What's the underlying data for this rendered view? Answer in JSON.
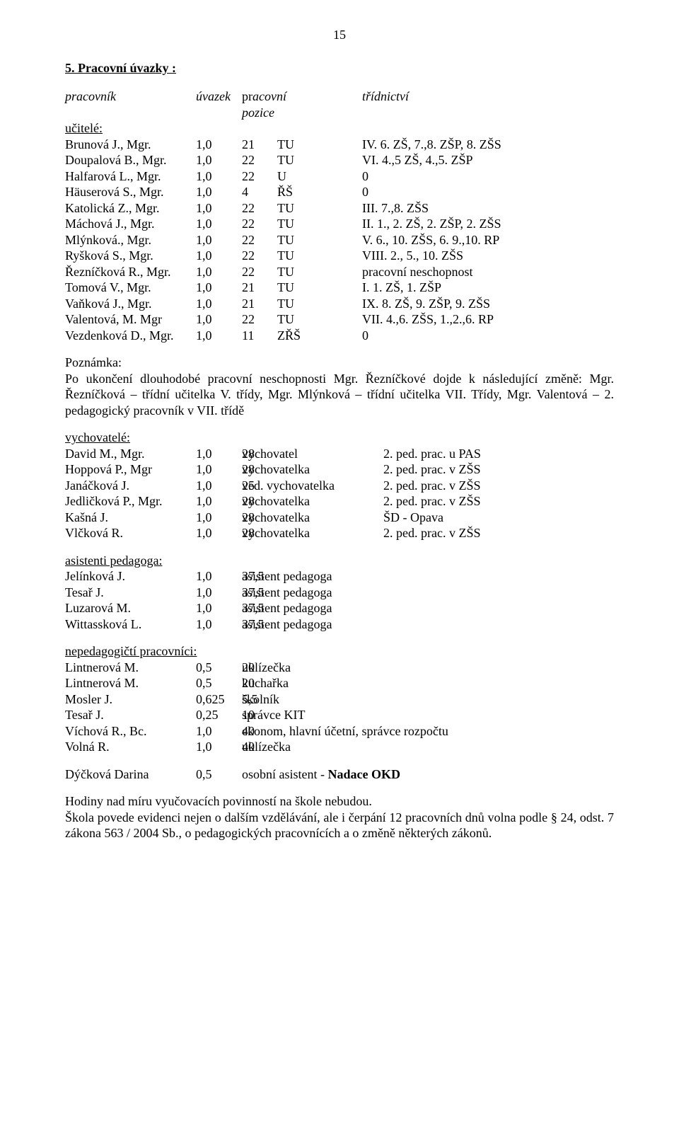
{
  "page_number": "15",
  "section_heading": "5.  Pracovní úvazky :",
  "header": {
    "c1": "pracovník",
    "c2": "úvazek",
    "c3": "pr",
    "c3b": "acovní",
    "c4": "pozice",
    "c5": "třídnictví"
  },
  "teachers": {
    "label": "učitelé:",
    "rows": [
      {
        "n": "Brunová J., Mgr.",
        "u": "1,0",
        "p": "21",
        "pz": "TU",
        "t": "IV. 6. ZŠ, 7.,8. ZŠP, 8. ZŠS"
      },
      {
        "n": "Doupalová B., Mgr.",
        "u": "1,0",
        "p": "22",
        "pz": "TU",
        "t": "VI. 4.,5 ZŠ, 4.,5. ZŠP"
      },
      {
        "n": "Halfarová L., Mgr.",
        "u": "1,0",
        "p": "22",
        "pz": "U",
        "t": "0"
      },
      {
        "n": "Häuserová S., Mgr.",
        "u": "1,0",
        "p": "  4",
        "pz": "ŘŠ",
        "t": "0"
      },
      {
        "n": "Katolická Z., Mgr.",
        "u": "1,0",
        "p": "22",
        "pz": "TU",
        "t": "III. 7.,8. ZŠS"
      },
      {
        "n": "Máchová J., Mgr.",
        "u": "1,0",
        "p": "22",
        "pz": "TU",
        "t": "II. 1., 2. ZŠ, 2. ZŠP, 2. ZŠS"
      },
      {
        "n": "Mlýnková., Mgr.",
        "u": "1,0",
        "p": "22",
        "pz": "TU",
        "t": "V. 6., 10. ZŠS, 6. 9.,10. RP"
      },
      {
        "n": "Ryšková S., Mgr.",
        "u": "1,0",
        "p": "22",
        "pz": "TU",
        "t": "VIII. 2., 5., 10. ZŠS"
      },
      {
        "n": "Řezníčková R., Mgr.",
        "u": "1,0",
        "p": "22",
        "pz": "TU",
        "t": "pracovní neschopnost"
      },
      {
        "n": "Tomová V., Mgr.",
        "u": "1,0",
        "p": "21",
        "pz": "TU",
        "t": "I. 1. ZŠ, 1. ZŠP"
      },
      {
        "n": "Vaňková J., Mgr.",
        "u": "1,0",
        "p": "21",
        "pz": "TU",
        "t": "IX. 8. ZŠ, 9. ZŠP, 9. ZŠS"
      },
      {
        "n": "Valentová, M. Mgr",
        "u": "1,0",
        "p": "22",
        "pz": "TU",
        "t": "VII. 4.,6. ZŠS, 1.,2.,6. RP"
      },
      {
        "n": "Vezdenková D., Mgr.",
        "u": "1,0",
        "p": "11",
        "pz": "ZŘŠ",
        "t": "0"
      }
    ]
  },
  "note_label": "Poznámka:",
  "note_text": "Po ukončení dlouhodobé pracovní neschopnosti Mgr. Řezníčkové dojde k následující změně: Mgr. Řezníčková – třídní učitelka V. třídy, Mgr. Mlýnková – třídní učitelka VII. Třídy, Mgr. Valentová – 2. pedagogický pracovník v VII. třídě",
  "vych": {
    "label": "vychovatelé:",
    "rows": [
      {
        "n": "David M., Mgr.",
        "u": "1,0",
        "p": "28",
        "pz": "vychovatel",
        "t": "2. ped. prac. u PAS"
      },
      {
        "n": "Hoppová P., Mgr",
        "u": "1,0",
        "p": "28",
        "pz": "vychovatelka",
        "t": "2. ped. prac. v ZŠS"
      },
      {
        "n": "Janáčková J.",
        "u": "1,0",
        "p": "25",
        "pz": "ved. vychovatelka",
        "t": "2. ped. prac. v ZŠS"
      },
      {
        "n": "Jedličková P., Mgr.",
        "u": "1,0",
        "p": "28",
        "pz": "vychovatelka",
        "t": "2. ped. prac. v ZŠS"
      },
      {
        "n": "Kašná J.",
        "u": "1,0",
        "p": "28",
        "pz": "vychovatelka",
        "t": "ŠD - Opava"
      },
      {
        "n": "Vlčková R.",
        "u": "1,0",
        "p": "28",
        "pz": "vychovatelka",
        "t": "2. ped. prac. v ZŠS"
      }
    ]
  },
  "ap": {
    "label": "asistenti pedagoga:",
    "rows": [
      {
        "n": "Jelínková J.",
        "u": "1,0",
        "p": "37,5",
        "pz": "asistent pedagoga"
      },
      {
        "n": "Tesař J.",
        "u": "1,0",
        "p": "37,5",
        "pz": "asistent pedagoga"
      },
      {
        "n": "Luzarová M.",
        "u": "1,0",
        "p": "37,5",
        "pz": "asistent pedagoga"
      },
      {
        "n": "Wittassková L.",
        "u": "1,0",
        "p": "37,5",
        "pz": "asistent pedagoga"
      }
    ]
  },
  "np": {
    "label": "nepedagogičtí pracovníci:",
    "rows": [
      {
        "n": "Lintnerová M.",
        "u": "0,5",
        "p": "20",
        "pz": "uklízečka"
      },
      {
        "n": "Lintnerová M.",
        "u": "0,5",
        "p": "20",
        "pz": "kuchařka"
      },
      {
        "n": "Mosler J.",
        "u": "0,625",
        "p": "5,5",
        "pz": "školník"
      },
      {
        "n": "Tesař J.",
        "u": "0,25",
        "p": "10",
        "pz": "správce KIT"
      },
      {
        "n": "Víchová R., Bc.",
        "u": "1,0",
        "p": "40",
        "pz": "ekonom, hlavní účetní, správce rozpočtu"
      },
      {
        "n": "Volná R.",
        "u": "1,0",
        "p": "40",
        "pz": "uklízečka"
      }
    ]
  },
  "osobni": {
    "n": "Dýčková Darina",
    "u": "0,5",
    "t_pre": "osobní asistent - ",
    "t_bold": "Nadace OKD"
  },
  "final1": "Hodiny nad míru vyučovacích povinností na škole nebudou.",
  "final2": "Škola povede evidenci nejen o dalším vzdělávání, ale i čerpání 12 pracovních dnů volna podle § 24, odst. 7 zákona 563 / 2004 Sb., o pedagogických pracovnících a o změně některých zákonů."
}
